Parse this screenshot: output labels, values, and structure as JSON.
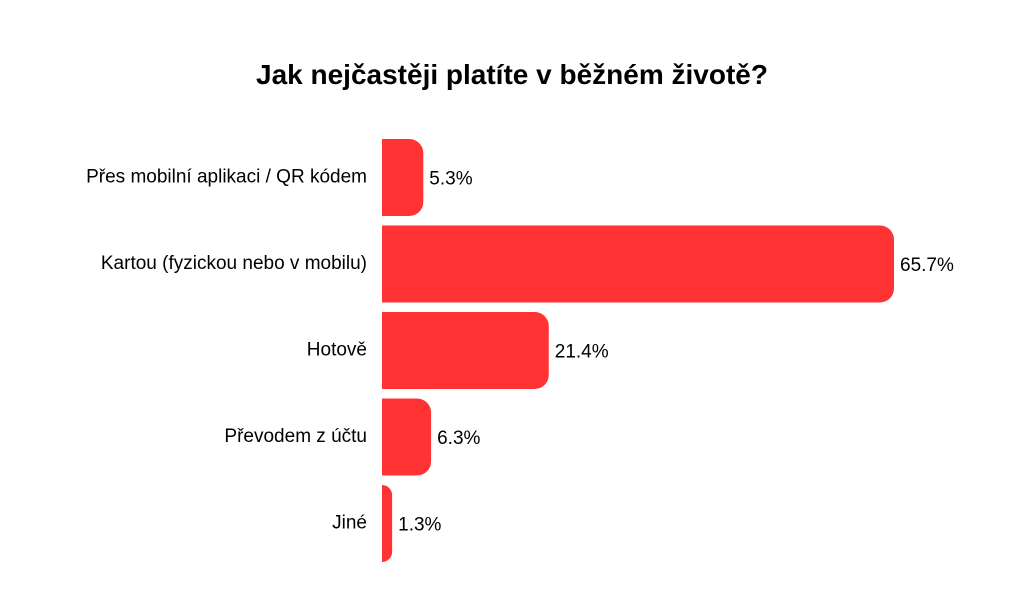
{
  "chart_data": {
    "type": "bar",
    "orientation": "horizontal",
    "title": "Jak nejčastěji platíte v běžném životě?",
    "categories": [
      "Přes mobilní aplikaci / QR kódem",
      "Kartou (fyzickou nebo v mobilu)",
      "Hotově",
      "Převodem z účtu",
      "Jiné"
    ],
    "values": [
      5.3,
      65.7,
      21.4,
      6.3,
      1.3
    ],
    "value_labels": [
      "5.3%",
      "65.7%",
      "21.4%",
      "6.3%",
      "1.3%"
    ],
    "unit": "%",
    "bar_color": "#ff3333",
    "xlim": [
      0,
      65.7
    ],
    "grid": false,
    "legend": "none"
  }
}
